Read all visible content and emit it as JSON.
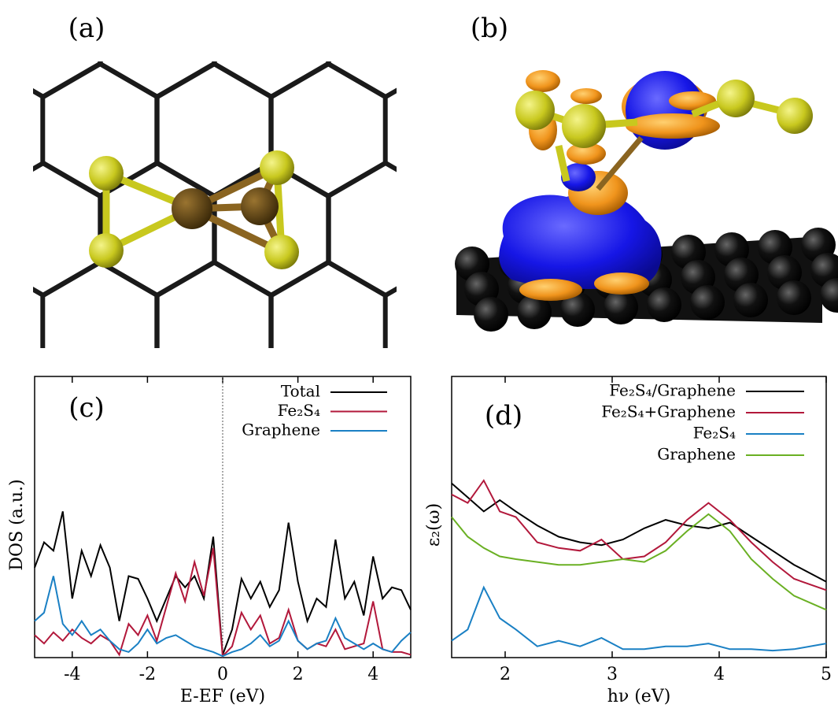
{
  "panels": [
    "(a)",
    "(b)"
  ],
  "chart_data": [
    {
      "type": "line",
      "label": "(c)",
      "xlabel": "E-EF (eV)",
      "ylabel": "DOS (a.u.)",
      "xlim": [
        -5,
        5
      ],
      "ylim": [
        0,
        10
      ],
      "xticks": [
        -4,
        -2,
        0,
        2,
        4
      ],
      "zero_line": true,
      "x": [
        -5,
        -4.75,
        -4.5,
        -4.25,
        -4,
        -3.75,
        -3.5,
        -3.25,
        -3,
        -2.75,
        -2.5,
        -2.25,
        -2,
        -1.75,
        -1.5,
        -1.25,
        -1,
        -0.75,
        -0.5,
        -0.25,
        0,
        0.25,
        0.5,
        0.75,
        1,
        1.25,
        1.5,
        1.75,
        2,
        2.25,
        2.5,
        2.75,
        3,
        3.25,
        3.5,
        3.75,
        4,
        4.25,
        4.5,
        4.75,
        5
      ],
      "series": [
        {
          "name": "Total",
          "color": "#000000",
          "values": [
            3.2,
            4.1,
            3.8,
            5.2,
            2.1,
            3.8,
            2.9,
            4.0,
            3.2,
            1.3,
            2.9,
            2.8,
            2.1,
            1.3,
            2.1,
            2.9,
            2.5,
            2.9,
            2.1,
            4.3,
            0.1,
            1.0,
            2.8,
            2.1,
            2.7,
            1.8,
            2.4,
            4.8,
            2.7,
            1.3,
            2.1,
            1.8,
            4.2,
            2.1,
            2.7,
            1.5,
            3.6,
            2.1,
            2.5,
            2.4,
            1.7
          ]
        },
        {
          "name": "Fe₂S₄",
          "color": "#b2183b",
          "values": [
            0.8,
            0.5,
            0.9,
            0.6,
            1.0,
            0.7,
            0.5,
            0.8,
            0.6,
            0.1,
            1.2,
            0.8,
            1.5,
            0.6,
            1.8,
            3.0,
            2.0,
            3.4,
            2.2,
            3.9,
            0.05,
            0.4,
            1.6,
            1.0,
            1.5,
            0.5,
            0.7,
            1.7,
            0.6,
            0.3,
            0.5,
            0.4,
            1.0,
            0.3,
            0.4,
            0.5,
            2.0,
            0.3,
            0.2,
            0.2,
            0.1
          ]
        },
        {
          "name": "Graphene",
          "color": "#1a80c4",
          "values": [
            1.3,
            1.6,
            2.9,
            1.2,
            0.8,
            1.3,
            0.8,
            1.0,
            0.6,
            0.3,
            0.2,
            0.5,
            1.0,
            0.5,
            0.7,
            0.8,
            0.6,
            0.4,
            0.3,
            0.2,
            0.05,
            0.2,
            0.3,
            0.5,
            0.8,
            0.4,
            0.6,
            1.3,
            0.6,
            0.3,
            0.5,
            0.6,
            1.4,
            0.7,
            0.5,
            0.3,
            0.5,
            0.3,
            0.2,
            0.6,
            0.9
          ]
        }
      ]
    },
    {
      "type": "line",
      "label": "(d)",
      "xlabel": "hν (eV)",
      "ylabel": "ε₂(ω)",
      "xlim": [
        1.5,
        5
      ],
      "ylim": [
        0,
        10
      ],
      "xticks": [
        2,
        3,
        4,
        5
      ],
      "x": [
        1.5,
        1.65,
        1.8,
        1.95,
        2.1,
        2.3,
        2.5,
        2.7,
        2.9,
        3.1,
        3.3,
        3.5,
        3.7,
        3.9,
        4.1,
        4.3,
        4.5,
        4.7,
        5.0
      ],
      "series": [
        {
          "name": "Fe₂S₄/Graphene",
          "color": "#000000",
          "values": [
            6.2,
            5.7,
            5.2,
            5.6,
            5.2,
            4.7,
            4.3,
            4.1,
            4.0,
            4.2,
            4.6,
            4.9,
            4.7,
            4.6,
            4.8,
            4.3,
            3.8,
            3.3,
            2.7
          ]
        },
        {
          "name": "Fe₂S₄+Graphene",
          "color": "#b2183b",
          "values": [
            5.8,
            5.5,
            6.3,
            5.2,
            5.0,
            4.1,
            3.9,
            3.8,
            4.2,
            3.5,
            3.6,
            4.1,
            4.9,
            5.5,
            4.9,
            4.1,
            3.4,
            2.8,
            2.4
          ]
        },
        {
          "name": "Fe₂S₄",
          "color": "#1a80c4",
          "values": [
            0.6,
            1.0,
            2.5,
            1.4,
            1.0,
            0.4,
            0.6,
            0.4,
            0.7,
            0.3,
            0.3,
            0.4,
            0.4,
            0.5,
            0.3,
            0.3,
            0.25,
            0.3,
            0.5
          ]
        },
        {
          "name": "Graphene",
          "color": "#6ab023",
          "values": [
            5.0,
            4.3,
            3.9,
            3.6,
            3.5,
            3.4,
            3.3,
            3.3,
            3.4,
            3.5,
            3.4,
            3.8,
            4.5,
            5.1,
            4.5,
            3.5,
            2.8,
            2.2,
            1.7
          ]
        }
      ]
    }
  ]
}
